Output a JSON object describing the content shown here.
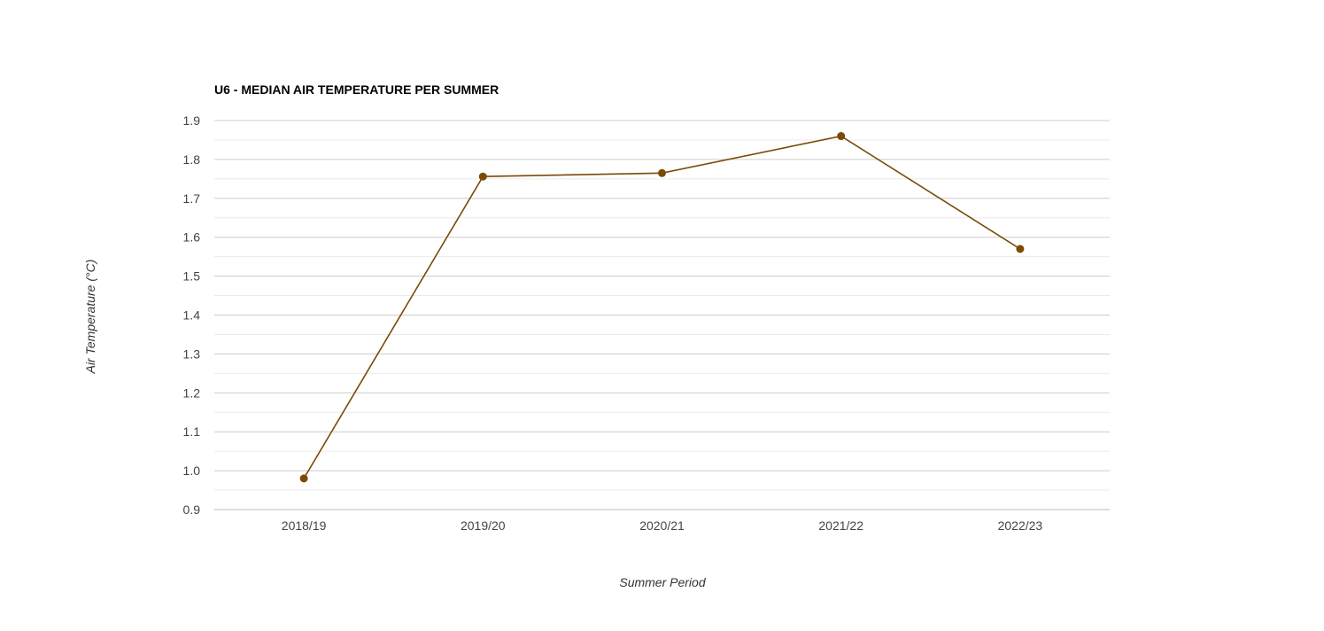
{
  "chart_data": {
    "type": "line",
    "title": "U6 - MEDIAN AIR TEMPERATURE PER SUMMER",
    "xlabel": "Summer Period",
    "ylabel": "Air Temperature (°C)",
    "categories": [
      "2018/19",
      "2019/20",
      "2020/21",
      "2021/22",
      "2022/23"
    ],
    "series": [
      {
        "values": [
          0.98,
          1.756,
          1.765,
          1.86,
          1.57
        ]
      }
    ],
    "ylim": [
      0.9,
      1.9
    ],
    "yticks": [
      "0.9",
      "1.0",
      "1.1",
      "1.2",
      "1.3",
      "1.4",
      "1.5",
      "1.6",
      "1.7",
      "1.8",
      "1.9"
    ],
    "grid": true,
    "legend": "none",
    "colors": {
      "line": "#7a4a06",
      "marker": "#7a4a06",
      "gridline": "#cccccc",
      "minor_gridline": "#ebebeb",
      "baseline": "#bbbbbb"
    }
  }
}
